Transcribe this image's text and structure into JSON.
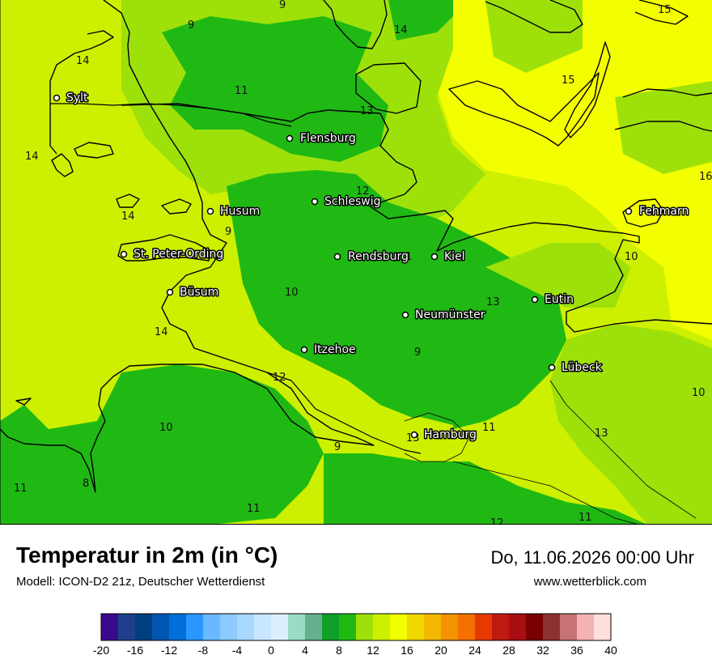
{
  "header": {
    "title": "Temperatur in 2m (in °C)",
    "model": "Modell: ICON-D2 21z, Deutscher Wetterdienst",
    "datetime": "Do, 11.06.2026 00:00 Uhr",
    "website": "www.wetterblick.com"
  },
  "cities": [
    {
      "name": "Sylt"
    },
    {
      "name": "Flensburg"
    },
    {
      "name": "Schleswig"
    },
    {
      "name": "Husum"
    },
    {
      "name": "Fehmarn"
    },
    {
      "name": "St. Peter-Ording"
    },
    {
      "name": "Rendsburg"
    },
    {
      "name": "Kiel"
    },
    {
      "name": "Büsum"
    },
    {
      "name": "Eutin"
    },
    {
      "name": "Neumünster"
    },
    {
      "name": "Itzehoe"
    },
    {
      "name": "Lübeck"
    },
    {
      "name": "Hamburg"
    }
  ],
  "isolines": [
    "9",
    "14",
    "15",
    "14",
    "11",
    "13",
    "15",
    "14",
    "16",
    "12",
    "14",
    "9",
    "11",
    "10",
    "10",
    "13",
    "14",
    "9",
    "12",
    "10",
    "10",
    "11",
    "13",
    "9",
    "9",
    "8",
    "11",
    "11",
    "11",
    "12",
    "13"
  ],
  "legend": {
    "ticks": [
      "-20",
      "-16",
      "-12",
      "-8",
      "-4",
      "0",
      "4",
      "8",
      "12",
      "16",
      "20",
      "24",
      "28",
      "32",
      "36",
      "40"
    ],
    "colors": [
      "#3a0a8c",
      "#1e3f8c",
      "#003f80",
      "#0055b0",
      "#0070d8",
      "#2a96ff",
      "#6ab8ff",
      "#8ccaff",
      "#a9d8ff",
      "#c8e6ff",
      "#dcefff",
      "#99dcc4",
      "#66b08e",
      "#10a02a",
      "#20b914",
      "#9ee10a",
      "#cdf000",
      "#f3ff00",
      "#f0d800",
      "#f4b800",
      "#f39300",
      "#f47000",
      "#e83a00",
      "#bf1a12",
      "#a80e12",
      "#7a0000",
      "#8e3131",
      "#c87373",
      "#f3b3b3",
      "#ffdede"
    ]
  }
}
